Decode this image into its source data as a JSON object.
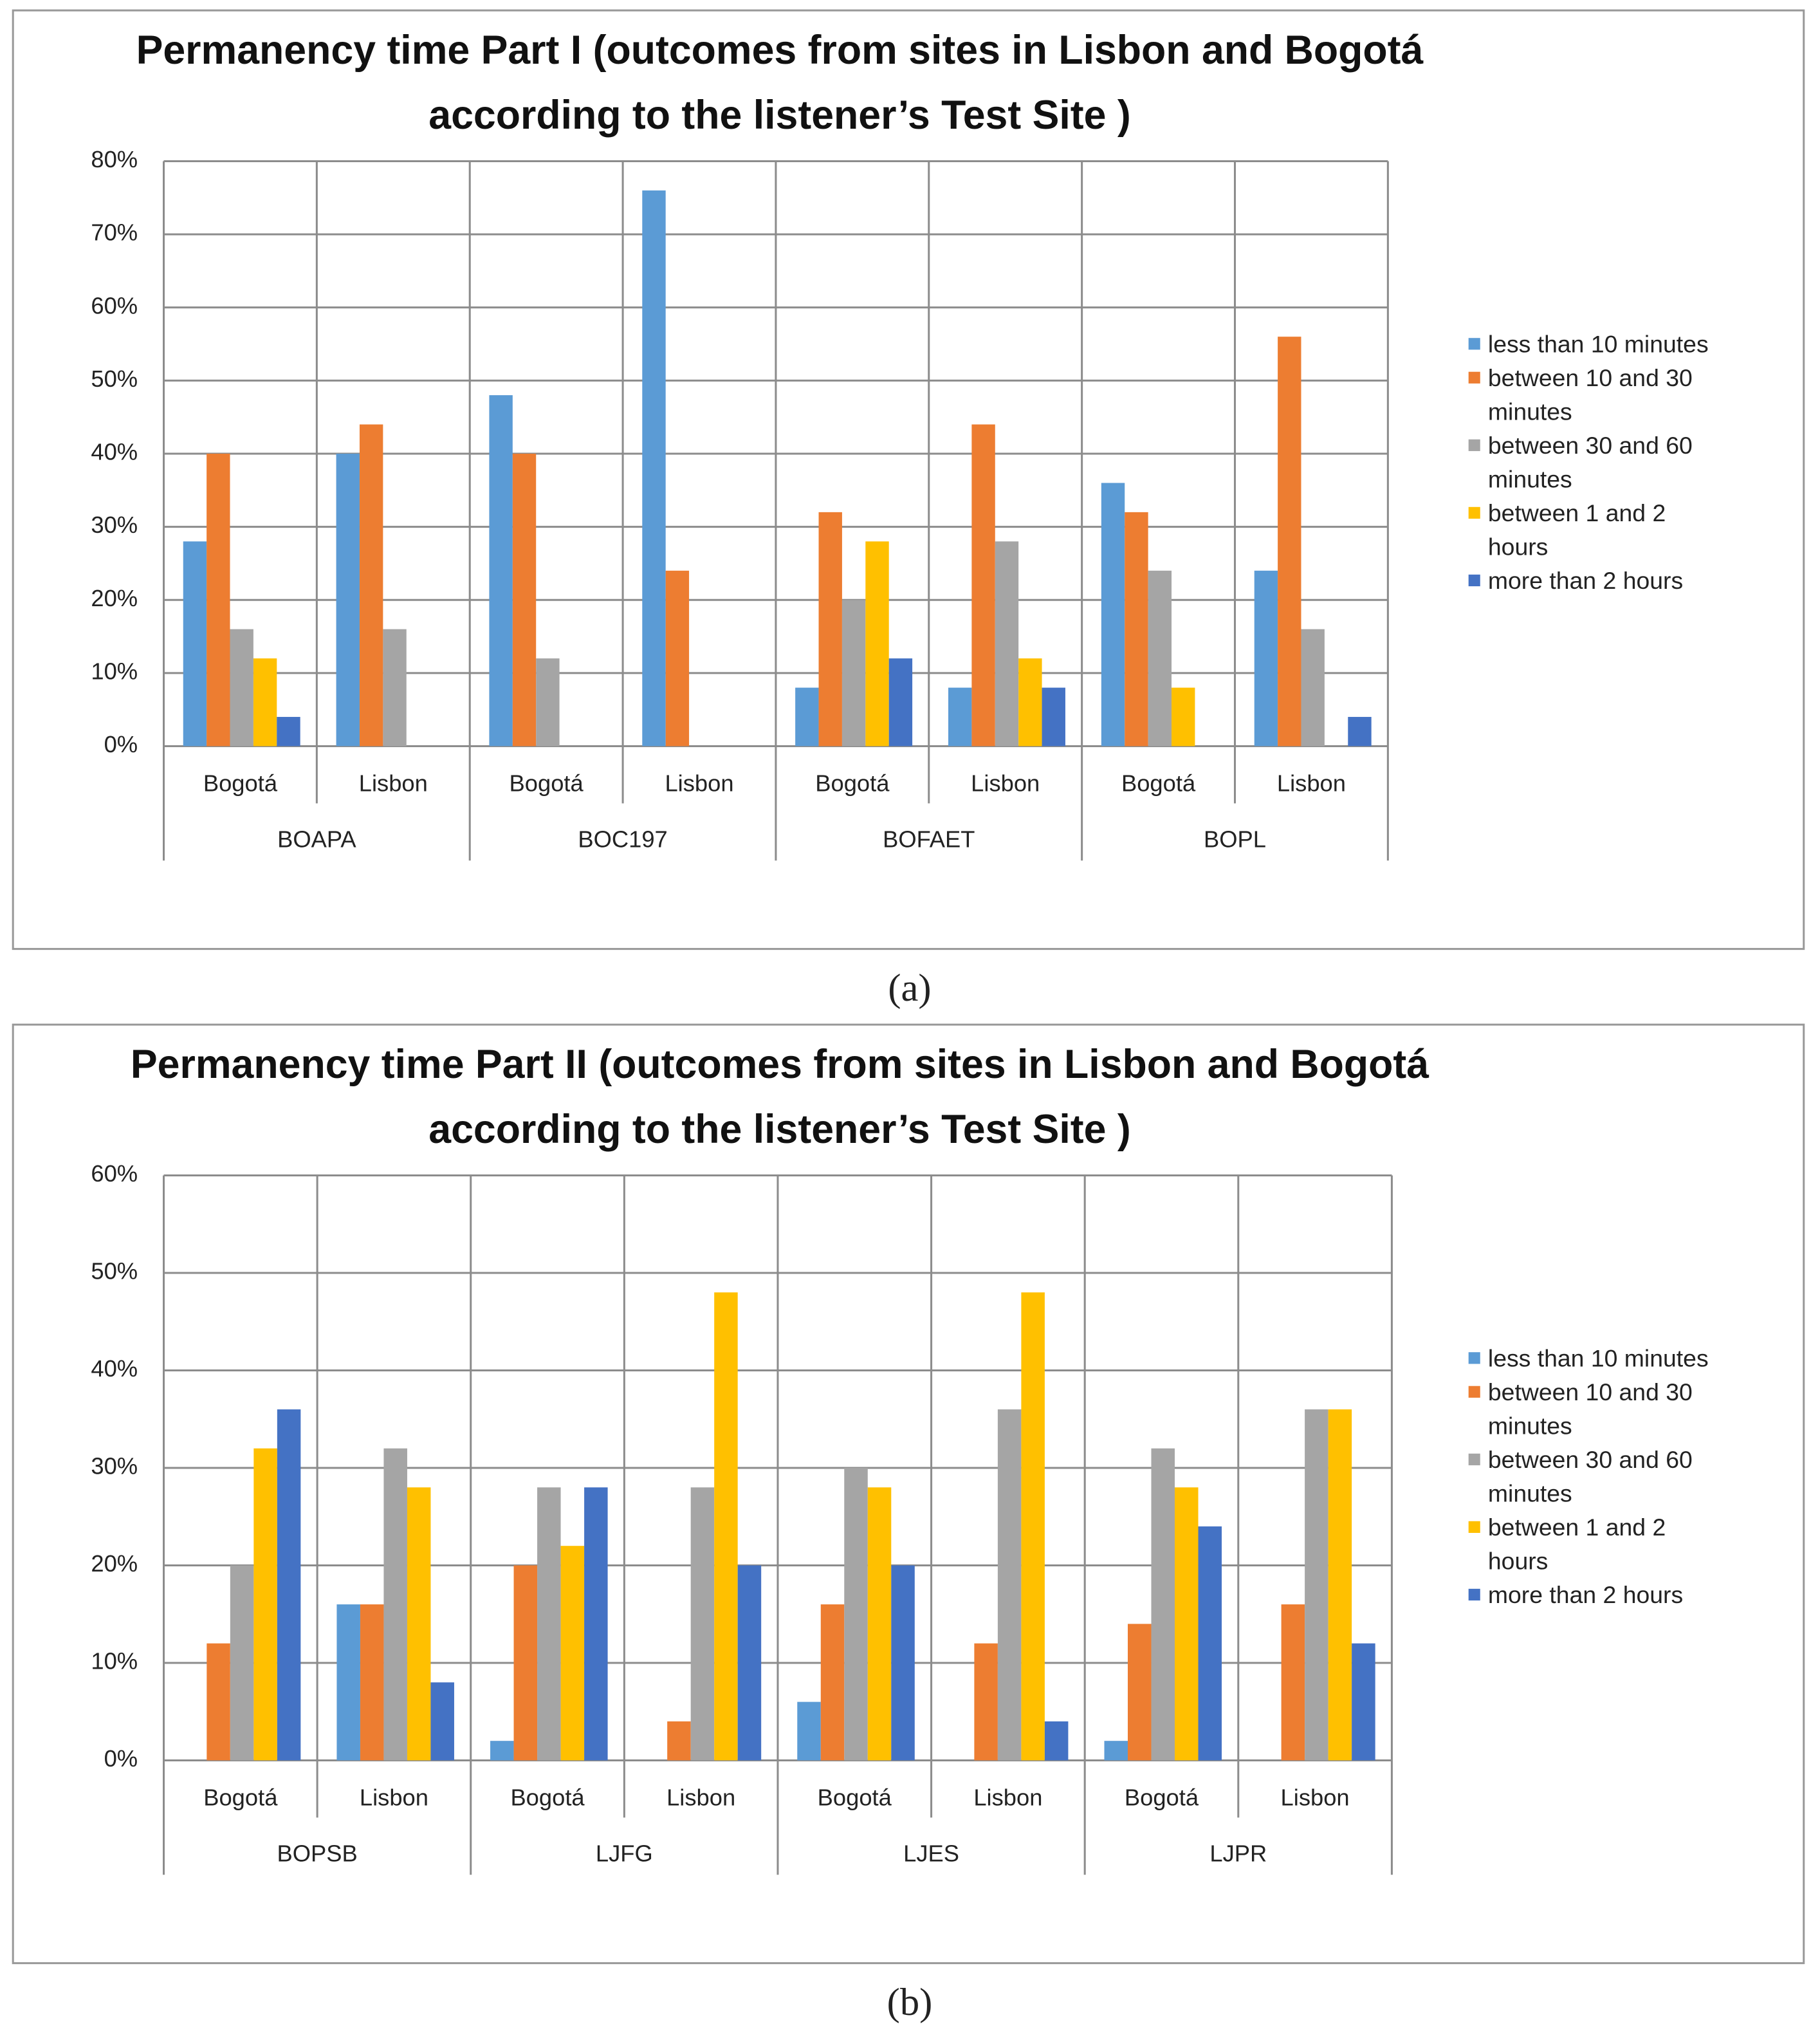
{
  "chart_data": [
    {
      "type": "bar",
      "title": "Permanency time Part I (outcomes from sites in Lisbon and Bogotá according to the listener’s Test Site )",
      "caption": "(a)",
      "categories": [
        "Bogotá",
        "Lisbon",
        "Bogotá",
        "Lisbon",
        "Bogotá",
        "Lisbon",
        "Bogotá",
        "Lisbon"
      ],
      "groups": [
        "BOAPA",
        "BOC197",
        "BOFAET",
        "BOPL"
      ],
      "series": [
        {
          "name": "less than 10 minutes",
          "color": "#5b9bd5",
          "values": [
            28,
            40,
            48,
            76,
            8,
            8,
            36,
            24
          ]
        },
        {
          "name": "between 10 and 30 minutes",
          "color": "#ed7d31",
          "values": [
            40,
            44,
            40,
            24,
            32,
            44,
            32,
            56
          ]
        },
        {
          "name": "between 30 and 60 minutes",
          "color": "#a5a5a5",
          "values": [
            16,
            16,
            12,
            0,
            20,
            28,
            24,
            16
          ]
        },
        {
          "name": "between 1 and 2 hours",
          "color": "#ffc000",
          "values": [
            12,
            0,
            0,
            0,
            28,
            12,
            8,
            0
          ]
        },
        {
          "name": "more than 2 hours",
          "color": "#4472c4",
          "values": [
            4,
            0,
            0,
            0,
            12,
            8,
            0,
            4
          ]
        }
      ],
      "ylim": [
        0,
        80
      ],
      "yticks": [
        {
          "value": 0,
          "label": "0%"
        },
        {
          "value": 10,
          "label": "10%"
        },
        {
          "value": 20,
          "label": "20%"
        },
        {
          "value": 30,
          "label": "30%"
        },
        {
          "value": 40,
          "label": "40%"
        },
        {
          "value": 50,
          "label": "50%"
        },
        {
          "value": 60,
          "label": "60%"
        },
        {
          "value": 70,
          "label": "70%"
        },
        {
          "value": 80,
          "label": "80%"
        }
      ],
      "grid": true
    },
    {
      "type": "bar",
      "title": "Permanency time Part II (outcomes from sites in Lisbon and Bogotá according to the listener’s Test Site )",
      "caption": "(b)",
      "categories": [
        "Bogotá",
        "Lisbon",
        "Bogotá",
        "Lisbon",
        "Bogotá",
        "Lisbon",
        "Bogotá",
        "Lisbon"
      ],
      "groups": [
        "BOPSB",
        "LJFG",
        "LJES",
        "LJPR"
      ],
      "series": [
        {
          "name": "less than 10 minutes",
          "color": "#5b9bd5",
          "values": [
            0,
            16,
            2,
            0,
            6,
            0,
            2,
            0
          ]
        },
        {
          "name": "between 10 and 30 minutes",
          "color": "#ed7d31",
          "values": [
            12,
            16,
            20,
            4,
            16,
            12,
            14,
            16
          ]
        },
        {
          "name": "between 30 and 60 minutes",
          "color": "#a5a5a5",
          "values": [
            20,
            32,
            28,
            28,
            30,
            36,
            32,
            36
          ]
        },
        {
          "name": "between 1 and 2 hours",
          "color": "#ffc000",
          "values": [
            32,
            28,
            22,
            48,
            28,
            48,
            28,
            36
          ]
        },
        {
          "name": "more than 2 hours",
          "color": "#4472c4",
          "values": [
            36,
            8,
            28,
            20,
            20,
            4,
            24,
            12
          ]
        }
      ],
      "ylim": [
        0,
        60
      ],
      "yticks": [
        {
          "value": 0,
          "label": "0%"
        },
        {
          "value": 10,
          "label": "10%"
        },
        {
          "value": 20,
          "label": "20%"
        },
        {
          "value": 30,
          "label": "30%"
        },
        {
          "value": 40,
          "label": "40%"
        },
        {
          "value": 50,
          "label": "50%"
        },
        {
          "value": 60,
          "label": "60%"
        }
      ],
      "grid": true
    }
  ]
}
